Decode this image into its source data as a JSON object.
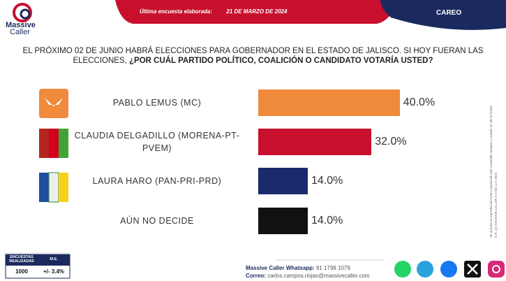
{
  "logo": [
    "Massive",
    "Caller"
  ],
  "header": {
    "label": "Última encuesta elaborada:",
    "date": "21 DE MARZO DE 2024",
    "tab": "CAREO"
  },
  "chart_data": {
    "type": "bar",
    "orientation": "horizontal",
    "title": "EL PRÓXIMO 02 DE JUNIO HABRÁ ELECCIONES PARA GOBERNADOR EN EL ESTADO DE JALISCO. SI HOY FUERAN LAS ELECCIONES,",
    "subtitle": "¿POR CUÁL PARTIDO POLÍTICO, COALICIÓN O CANDIDATO VOTARÍA USTED?",
    "categories": [
      "PABLO LEMUS (MC)",
      "CLAUDIA DELGADILLO (MORENA-PT-PVEM)",
      "LAURA HARO (PAN-PRI-PRD)",
      "AÚN NO DECIDE"
    ],
    "values": [
      40,
      32,
      14,
      14
    ],
    "value_labels": [
      "40.0%",
      "32.0%",
      "14.0%",
      "14.0%"
    ],
    "colors": [
      "#f08a3c",
      "#c8102e",
      "#1b2a6b",
      "#111111"
    ]
  },
  "survey": {
    "headers": [
      "ENCUESTAS REALIZADAS",
      "M.E."
    ],
    "values": [
      "1000",
      "+/- 3.4%"
    ]
  },
  "footer": {
    "whatsapp_label": "Massive Caller Whatsapp:",
    "whatsapp": "81 1798 1079",
    "email_label": "Correo:",
    "email": "carlos.campos.riojas@massivecaller.com"
  },
  "side_notes": [
    "D.R. (C) MASSIVE CALLER S.A DE C.V. 2024",
    "Se autoriza la reproducción total o parcial de este contenido siempre y cuando se cite la fuente"
  ]
}
